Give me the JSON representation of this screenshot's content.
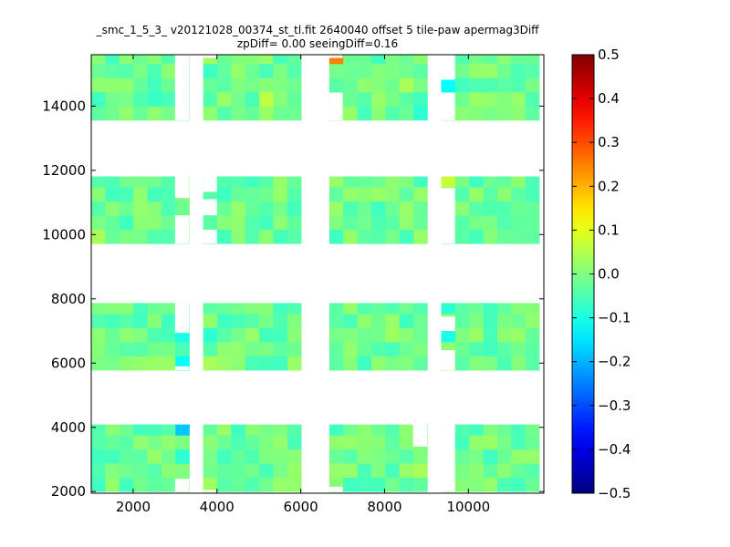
{
  "chart_data": {
    "type": "heatmap",
    "title": "_smc_1_5_3_ v20121028_00374_st_tl.fit 2640040 offset 5 tile-paw apermag3Diff",
    "subtitle": "zpDiff= 0.00 seeingDiff=0.16",
    "xlim": [
      1000,
      11800
    ],
    "ylim": [
      1950,
      15600
    ],
    "x_ticks": [
      2000,
      4000,
      6000,
      8000,
      10000
    ],
    "x_tick_labels": [
      "2000",
      "4000",
      "6000",
      "8000",
      "10000"
    ],
    "y_ticks": [
      2000,
      4000,
      6000,
      8000,
      10000,
      12000,
      14000
    ],
    "y_tick_labels": [
      "2000",
      "4000",
      "6000",
      "8000",
      "10000",
      "12000",
      "14000"
    ],
    "colorbar": {
      "colormap": "jet",
      "min": -0.5,
      "max": 0.5,
      "ticks": [
        0.5,
        0.4,
        0.3,
        0.2,
        0.1,
        0.0,
        -0.1,
        -0.2,
        -0.3,
        -0.4,
        -0.5
      ],
      "tick_labels": [
        "0.5",
        "0.4",
        "0.3",
        "0.2",
        "0.1",
        "0.0",
        "−0.1",
        "−0.2",
        "−0.3",
        "−0.4",
        "−0.5"
      ]
    },
    "cell_size": [
      335,
      440
    ],
    "columns": [
      {
        "x0": 1000,
        "x1": 3340
      },
      {
        "x0": 3670,
        "x1": 6010
      },
      {
        "x0": 6680,
        "x1": 9020
      },
      {
        "x0": 9350,
        "x1": 11690
      }
    ],
    "rows": [
      {
        "y0": 2000,
        "y1": 4090
      },
      {
        "y0": 5780,
        "y1": 7870
      },
      {
        "y0": 9720,
        "y1": 11810
      },
      {
        "y0": 13560,
        "y1": 15650
      }
    ],
    "background_value": -0.02,
    "special_cells": [
      {
        "x": 3170,
        "y": 3870,
        "value": -0.18
      },
      {
        "x": 3170,
        "y": 2880,
        "value": -0.08
      },
      {
        "x": 3170,
        "y": 6070,
        "value": -0.12
      },
      {
        "x": 3170,
        "y": 6820,
        "value": -0.1
      },
      {
        "x": 3170,
        "y": 7600,
        "value": -0.02
      },
      {
        "x": 3840,
        "y": 7000,
        "value": -0.08
      },
      {
        "x": 3840,
        "y": 5900,
        "value": 0.04
      },
      {
        "x": 3840,
        "y": 2210,
        "value": 0.03
      },
      {
        "x": 3840,
        "y": 10150,
        "value": -0.08
      },
      {
        "x": 4170,
        "y": 10150,
        "value": -0.06
      },
      {
        "x": 3840,
        "y": 11100,
        "value": -0.04
      },
      {
        "x": 3840,
        "y": 15330,
        "value": 0.03
      },
      {
        "x": 5260,
        "y": 14050,
        "value": 0.06
      },
      {
        "x": 5180,
        "y": 11600,
        "value": -0.04
      },
      {
        "x": 5460,
        "y": 11200,
        "value": 0.02
      },
      {
        "x": 6850,
        "y": 15420,
        "value": 0.25
      },
      {
        "x": 8260,
        "y": 5580,
        "value": 0.12
      },
      {
        "x": 8600,
        "y": 5580,
        "value": 0.04
      },
      {
        "x": 9520,
        "y": 14570,
        "value": -0.12
      },
      {
        "x": 9520,
        "y": 11600,
        "value": 0.07
      },
      {
        "x": 9520,
        "y": 7600,
        "value": -0.08
      },
      {
        "x": 9520,
        "y": 6820,
        "value": -0.1
      },
      {
        "x": 9520,
        "y": 6150,
        "value": 0.05
      },
      {
        "x": 10600,
        "y": 5580,
        "value": 0.05
      },
      {
        "x": 8860,
        "y": 13700,
        "value": -0.08
      },
      {
        "x": 8860,
        "y": 11600,
        "value": -0.06
      },
      {
        "x": 8860,
        "y": 2700,
        "value": 0.04
      },
      {
        "x": 8260,
        "y": 7000,
        "value": 0.03
      },
      {
        "x": 8600,
        "y": 14600,
        "value": 0.04
      },
      {
        "x": 1340,
        "y": 15330,
        "value": -0.06
      },
      {
        "x": 2670,
        "y": 14260,
        "value": -0.07
      },
      {
        "x": 1340,
        "y": 11100,
        "value": -0.06
      },
      {
        "x": 1180,
        "y": 10150,
        "value": 0.04
      },
      {
        "x": 10030,
        "y": 10150,
        "value": -0.06
      }
    ]
  }
}
